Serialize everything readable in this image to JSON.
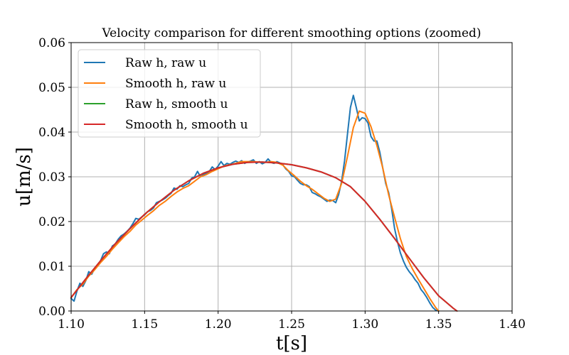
{
  "chart_data": {
    "type": "line",
    "title": "Velocity comparison for different smoothing options (zoomed)",
    "xlabel": "t[s]",
    "ylabel": "u[m/s]",
    "xlim": [
      1.1,
      1.4
    ],
    "ylim": [
      0.0,
      0.06
    ],
    "xticks": [
      "1.10",
      "1.15",
      "1.20",
      "1.25",
      "1.30",
      "1.35",
      "1.40"
    ],
    "yticks": [
      "0.00",
      "0.01",
      "0.02",
      "0.03",
      "0.04",
      "0.05",
      "0.06"
    ],
    "grid": true,
    "legend_position": "upper-left",
    "series": [
      {
        "name": "Raw h, raw u",
        "color": "#1f77b4",
        "x": [
          1.1,
          1.102,
          1.104,
          1.106,
          1.108,
          1.11,
          1.112,
          1.114,
          1.116,
          1.118,
          1.12,
          1.122,
          1.124,
          1.126,
          1.128,
          1.13,
          1.132,
          1.134,
          1.136,
          1.138,
          1.14,
          1.142,
          1.144,
          1.146,
          1.148,
          1.15,
          1.152,
          1.154,
          1.156,
          1.158,
          1.16,
          1.162,
          1.164,
          1.166,
          1.168,
          1.17,
          1.172,
          1.174,
          1.176,
          1.178,
          1.18,
          1.182,
          1.184,
          1.186,
          1.188,
          1.19,
          1.192,
          1.194,
          1.196,
          1.198,
          1.2,
          1.202,
          1.204,
          1.206,
          1.208,
          1.21,
          1.212,
          1.214,
          1.216,
          1.218,
          1.22,
          1.222,
          1.224,
          1.226,
          1.228,
          1.23,
          1.232,
          1.234,
          1.236,
          1.238,
          1.24,
          1.242,
          1.244,
          1.246,
          1.248,
          1.25,
          1.252,
          1.254,
          1.256,
          1.258,
          1.26,
          1.262,
          1.264,
          1.266,
          1.268,
          1.27,
          1.272,
          1.274,
          1.276,
          1.278,
          1.28,
          1.282,
          1.284,
          1.286,
          1.288,
          1.29,
          1.292,
          1.294,
          1.296,
          1.298,
          1.3,
          1.302,
          1.304,
          1.306,
          1.308,
          1.31,
          1.312,
          1.314,
          1.316,
          1.318,
          1.32,
          1.322,
          1.324,
          1.326,
          1.328,
          1.33,
          1.332,
          1.334,
          1.336,
          1.338,
          1.34,
          1.342,
          1.344,
          1.346,
          1.348,
          1.35
        ],
        "y": [
          0.0028,
          0.0022,
          0.0045,
          0.0062,
          0.0055,
          0.0068,
          0.0088,
          0.0082,
          0.0095,
          0.01,
          0.0112,
          0.0128,
          0.0132,
          0.0128,
          0.0145,
          0.015,
          0.016,
          0.0168,
          0.0172,
          0.0178,
          0.0185,
          0.0195,
          0.0207,
          0.0205,
          0.021,
          0.0215,
          0.0222,
          0.0225,
          0.023,
          0.0242,
          0.0245,
          0.0248,
          0.0252,
          0.0258,
          0.0263,
          0.0275,
          0.0272,
          0.028,
          0.0278,
          0.0282,
          0.0285,
          0.0297,
          0.03,
          0.0312,
          0.03,
          0.0305,
          0.0308,
          0.0312,
          0.0322,
          0.0316,
          0.0324,
          0.0334,
          0.0325,
          0.033,
          0.0328,
          0.0332,
          0.0335,
          0.0332,
          0.0336,
          0.033,
          0.0333,
          0.0335,
          0.0338,
          0.033,
          0.0334,
          0.0329,
          0.0332,
          0.034,
          0.0332,
          0.033,
          0.0334,
          0.0331,
          0.0327,
          0.0318,
          0.0312,
          0.0302,
          0.03,
          0.0292,
          0.0285,
          0.0282,
          0.0282,
          0.0278,
          0.0265,
          0.0262,
          0.0258,
          0.0255,
          0.025,
          0.0245,
          0.0248,
          0.0247,
          0.0242,
          0.026,
          0.029,
          0.0335,
          0.0395,
          0.0455,
          0.0482,
          0.0455,
          0.0425,
          0.0432,
          0.043,
          0.042,
          0.039,
          0.038,
          0.038,
          0.0355,
          0.032,
          0.0285,
          0.0265,
          0.023,
          0.0185,
          0.0155,
          0.013,
          0.0112,
          0.0098,
          0.0088,
          0.008,
          0.007,
          0.0062,
          0.0048,
          0.004,
          0.003,
          0.0018,
          0.0008,
          0.0002,
          0.0
        ]
      },
      {
        "name": "Smooth h, raw u",
        "color": "#ff7f0e",
        "x": [
          1.1,
          1.104,
          1.108,
          1.112,
          1.116,
          1.12,
          1.124,
          1.128,
          1.132,
          1.136,
          1.14,
          1.144,
          1.148,
          1.152,
          1.156,
          1.16,
          1.164,
          1.168,
          1.172,
          1.176,
          1.18,
          1.184,
          1.188,
          1.192,
          1.196,
          1.2,
          1.204,
          1.208,
          1.212,
          1.216,
          1.22,
          1.224,
          1.228,
          1.232,
          1.236,
          1.24,
          1.244,
          1.248,
          1.252,
          1.256,
          1.26,
          1.264,
          1.268,
          1.272,
          1.276,
          1.28,
          1.284,
          1.288,
          1.292,
          1.296,
          1.3,
          1.304,
          1.308,
          1.312,
          1.316,
          1.32,
          1.324,
          1.328,
          1.332,
          1.336,
          1.34,
          1.344,
          1.348,
          1.35
        ],
        "y": [
          0.003,
          0.0048,
          0.006,
          0.0078,
          0.0092,
          0.0108,
          0.0122,
          0.0138,
          0.0152,
          0.0166,
          0.0178,
          0.0192,
          0.0203,
          0.0214,
          0.0224,
          0.0236,
          0.0245,
          0.0256,
          0.0266,
          0.0274,
          0.028,
          0.029,
          0.03,
          0.0305,
          0.0312,
          0.0318,
          0.0324,
          0.0327,
          0.033,
          0.0334,
          0.0334,
          0.0334,
          0.0333,
          0.0332,
          0.0334,
          0.0332,
          0.0326,
          0.0313,
          0.0302,
          0.029,
          0.028,
          0.0272,
          0.0262,
          0.0252,
          0.0245,
          0.025,
          0.0285,
          0.0345,
          0.041,
          0.0447,
          0.0442,
          0.0412,
          0.037,
          0.032,
          0.026,
          0.021,
          0.0162,
          0.0122,
          0.0095,
          0.0072,
          0.005,
          0.0028,
          0.0008,
          0.0
        ]
      },
      {
        "name": "Raw h, smooth u",
        "color": "#2ca02c",
        "x": [
          1.1,
          1.11,
          1.12,
          1.13,
          1.14,
          1.15,
          1.16,
          1.17,
          1.18,
          1.19,
          1.2,
          1.21,
          1.22,
          1.23,
          1.24,
          1.25,
          1.26,
          1.27,
          1.28,
          1.29,
          1.3,
          1.31,
          1.32,
          1.33,
          1.34,
          1.35,
          1.36,
          1.3625
        ],
        "y": [
          0.003,
          0.0072,
          0.0112,
          0.015,
          0.0184,
          0.0216,
          0.0244,
          0.027,
          0.0291,
          0.0308,
          0.032,
          0.0328,
          0.0332,
          0.0333,
          0.0331,
          0.0327,
          0.032,
          0.0311,
          0.0298,
          0.0278,
          0.0245,
          0.0205,
          0.0162,
          0.0118,
          0.0074,
          0.0034,
          0.0006,
          0.0
        ]
      },
      {
        "name": "Smooth h, smooth u",
        "color": "#d62728",
        "x": [
          1.1,
          1.11,
          1.12,
          1.13,
          1.14,
          1.15,
          1.16,
          1.17,
          1.18,
          1.19,
          1.2,
          1.21,
          1.22,
          1.23,
          1.24,
          1.25,
          1.26,
          1.27,
          1.28,
          1.29,
          1.3,
          1.31,
          1.32,
          1.33,
          1.34,
          1.35,
          1.36,
          1.3625
        ],
        "y": [
          0.003,
          0.0072,
          0.0112,
          0.015,
          0.0184,
          0.0216,
          0.0244,
          0.027,
          0.0291,
          0.0308,
          0.032,
          0.0328,
          0.0332,
          0.0333,
          0.0331,
          0.0327,
          0.032,
          0.0311,
          0.0298,
          0.0278,
          0.0245,
          0.0205,
          0.0162,
          0.0118,
          0.0074,
          0.0034,
          0.0006,
          0.0
        ]
      }
    ]
  }
}
